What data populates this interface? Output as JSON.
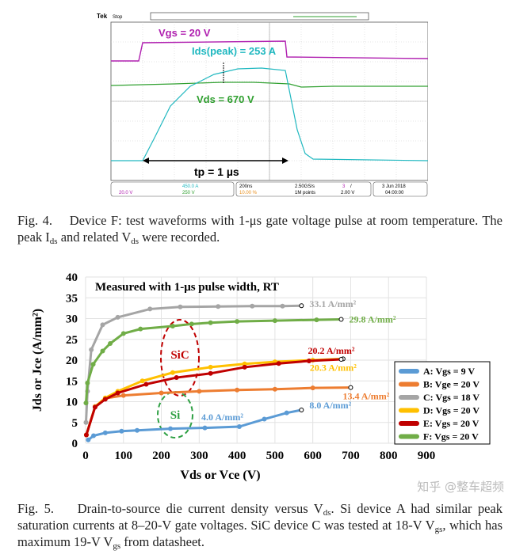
{
  "figure4": {
    "scope": {
      "brand": "Tek",
      "mode": "Stop",
      "vgs_label": "Vgs = 20 V",
      "ids_label": "Ids(peak) = 253 A",
      "vds_label": "Vds = 670 V",
      "tp_label": "tp = 1 µs",
      "status": {
        "ch3": "20.0 V",
        "ch2": "450.0 A",
        "ch4": "250 V",
        "timebase": "200ns",
        "trigger_pos": "10.00 %",
        "sample_rate": "2.50GS/s",
        "record": "1M points",
        "trig_ch": "3",
        "trig_slope": "/",
        "trig_level": "2.00 V",
        "date": "3 Jun  2018",
        "time": "04:00:00"
      },
      "colors": {
        "ch3": "#b020b0",
        "ch2": "#20b8c0",
        "ch4": "#30a030"
      }
    },
    "caption": {
      "label": "Fig. 4.",
      "text": "Device F: test waveforms with 1-μs gate voltage pulse at room temperature. The peak I",
      "sub1": "ds",
      "text2": " and related V",
      "sub2": "ds",
      "text3": " were recorded."
    }
  },
  "chart_data": {
    "type": "line",
    "title": "Measured with 1-μs pulse width, RT",
    "xlabel": "Vds or Vce (V)",
    "ylabel": "Jds or Jce (A/mm²)",
    "xlim": [
      0,
      900
    ],
    "ylim": [
      0,
      40
    ],
    "xticks": [
      0,
      100,
      200,
      300,
      400,
      500,
      600,
      700,
      800,
      900
    ],
    "yticks": [
      0,
      5,
      10,
      15,
      20,
      25,
      30,
      35,
      40
    ],
    "grid": true,
    "legend_position": "right",
    "series": [
      {
        "name": "A: Vgs = 9 V",
        "color": "#5b9bd5",
        "x": [
          7,
          21,
          52,
          95,
          136,
          224,
          315,
          406,
          472,
          531,
          570
        ],
        "y": [
          0.8,
          1.8,
          2.5,
          2.9,
          3.1,
          3.5,
          3.7,
          4.0,
          5.8,
          7.3,
          8.0
        ],
        "end_label": "8.0 A/mm²"
      },
      {
        "name": "B: Vge = 20 V",
        "color": "#ed7d31",
        "x": [
          2,
          25,
          52,
          100,
          200,
          300,
          400,
          500,
          600,
          700
        ],
        "y": [
          2,
          8.8,
          10.8,
          11.5,
          12.1,
          12.5,
          12.8,
          13.0,
          13.3,
          13.4
        ],
        "end_label": "13.4 A/mm²"
      },
      {
        "name": "C: Vgs = 18 V",
        "color": "#a5a5a5",
        "x": [
          1,
          5,
          15,
          45,
          85,
          170,
          250,
          350,
          440,
          520,
          570
        ],
        "y": [
          5,
          12.5,
          22.5,
          28.5,
          30.3,
          32.3,
          32.8,
          32.9,
          33.0,
          33.0,
          33.1
        ],
        "end_label": "33.1 A/mm²"
      },
      {
        "name": "D: Vgs = 20 V",
        "color": "#ffc000",
        "x": [
          2,
          25,
          52,
          85,
          150,
          230,
          330,
          420,
          500,
          600,
          680
        ],
        "y": [
          2,
          8.8,
          10.9,
          12.5,
          15,
          17,
          18.3,
          19.1,
          19.6,
          20.0,
          20.3
        ],
        "end_label": "20.3 A/mm²"
      },
      {
        "name": "E: Vgs = 20 V",
        "color": "#c00000",
        "x": [
          2,
          25,
          52,
          85,
          160,
          240,
          330,
          420,
          510,
          590,
          675
        ],
        "y": [
          2,
          8.7,
          10.6,
          12.1,
          14.2,
          15.8,
          16.8,
          18.3,
          19.2,
          19.8,
          20.2
        ],
        "end_label": "20.2 A/mm²"
      },
      {
        "name": "F: Vgs = 20 V",
        "color": "#70ad47",
        "x": [
          1,
          5,
          20,
          45,
          65,
          100,
          145,
          230,
          280,
          330,
          400,
          500,
          610,
          675
        ],
        "y": [
          9.7,
          14.5,
          19,
          22.2,
          24,
          26.4,
          27.5,
          28.2,
          28.7,
          29.0,
          29.3,
          29.5,
          29.7,
          29.8
        ],
        "end_label": "29.8 A/mm²"
      }
    ],
    "annotations": [
      {
        "text": "SiC",
        "color": "#c00000"
      },
      {
        "text": "Si",
        "color": "#2ea043"
      },
      {
        "text": "4.0 A/mm²",
        "color": "#5b9bd5"
      }
    ]
  },
  "figure5": {
    "caption": {
      "label": "Fig. 5.",
      "text": "Drain-to-source die current density versus V",
      "sub1": "ds",
      "text2": ". Si device A had similar peak saturation currents at 8–20-V gate voltages. SiC device C was tested at 18-V V",
      "sub2": "gs",
      "text3": ", which has maximum 19-V V",
      "sub3": "gs",
      "text4": " from datasheet."
    }
  },
  "watermark": "知乎 @整车超频"
}
